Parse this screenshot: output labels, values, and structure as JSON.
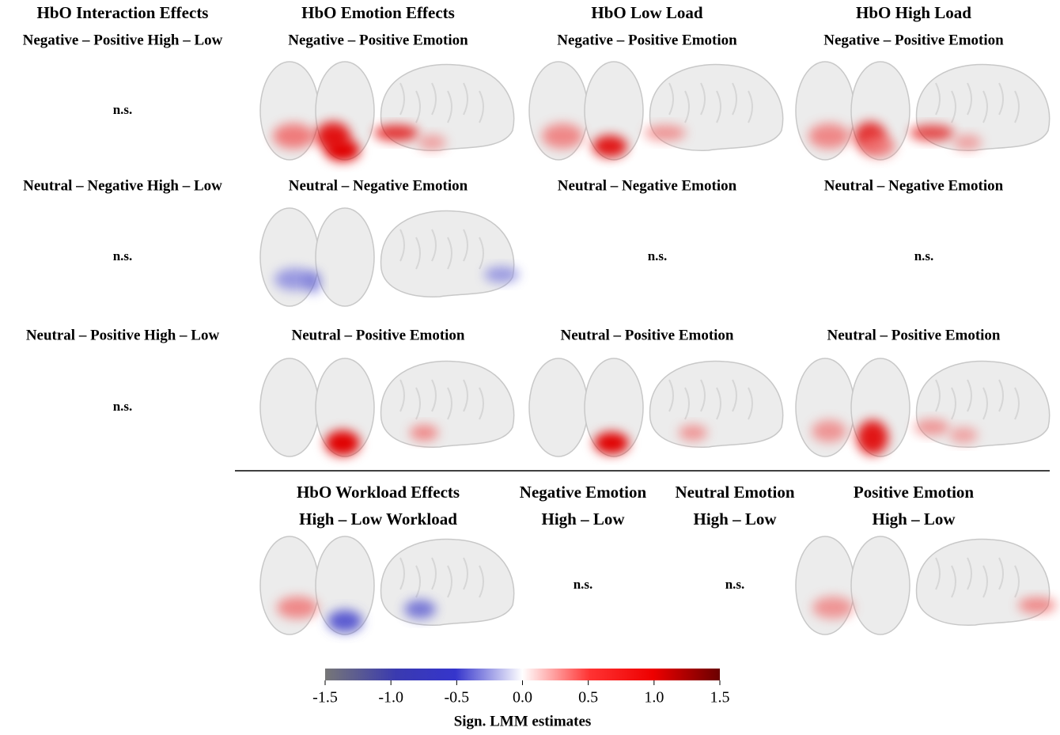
{
  "grid": {
    "headers": [
      "HbO Interaction Effects",
      "HbO Emotion Effects",
      "HbO Low Load",
      "HbO High Load"
    ],
    "rows": [
      {
        "cells": [
          {
            "label": "Negative – Positive High – Low",
            "result": "n.s."
          },
          {
            "label": "Negative – Positive Emotion"
          },
          {
            "label": "Negative – Positive Emotion"
          },
          {
            "label": "Negative – Positive Emotion"
          }
        ]
      },
      {
        "cells": [
          {
            "label": "Neutral – Negative High – Low",
            "result": "n.s."
          },
          {
            "label": "Neutral – Negative Emotion"
          },
          {
            "label": "Neutral – Negative Emotion",
            "result": "n.s."
          },
          {
            "label": "Neutral – Negative Emotion",
            "result": "n.s."
          }
        ]
      },
      {
        "cells": [
          {
            "label": "Neutral – Positive High – Low",
            "result": "n.s."
          },
          {
            "label": "Neutral – Positive Emotion"
          },
          {
            "label": "Neutral – Positive Emotion"
          },
          {
            "label": "Neutral – Positive Emotion"
          }
        ]
      }
    ]
  },
  "workload": {
    "cells": [
      {
        "title": "HbO Workload Effects",
        "label": "High – Low Workload"
      },
      {
        "title": "Negative Emotion",
        "label": "High – Low",
        "result": "n.s."
      },
      {
        "title": "Neutral Emotion",
        "label": "High – Low",
        "result": "n.s."
      },
      {
        "title": "Positive Emotion",
        "label": "High – Low"
      }
    ]
  },
  "colorbar": {
    "label": "Sign. LMM estimates",
    "lim": [
      -1.5,
      1.5
    ],
    "ticks": [
      -1.5,
      {
        "value": -1,
        "label": "-1.0"
      },
      -0.5,
      {
        "value": 0,
        "label": "0.0"
      },
      0.5,
      {
        "value": 1,
        "label": "1.0"
      },
      1.5
    ]
  }
}
